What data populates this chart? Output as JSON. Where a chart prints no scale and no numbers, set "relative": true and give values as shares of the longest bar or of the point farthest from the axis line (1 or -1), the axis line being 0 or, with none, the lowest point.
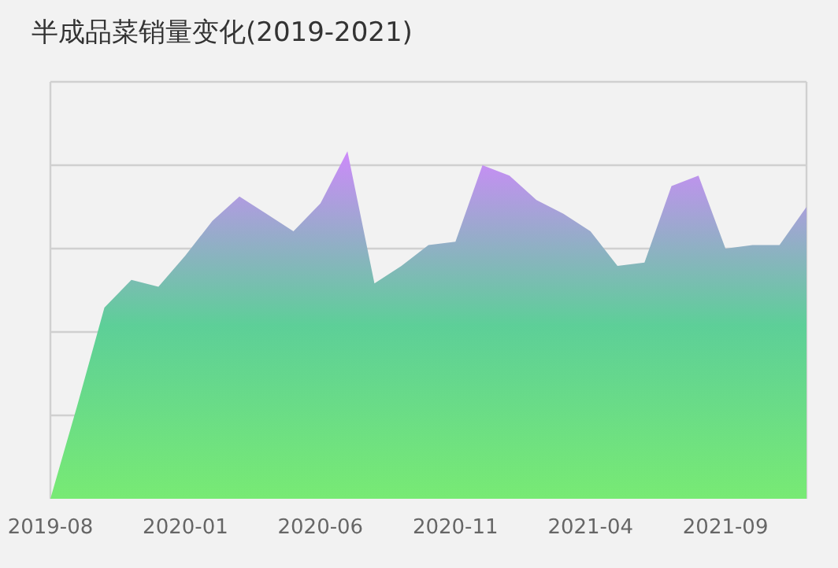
{
  "chart_data": {
    "type": "area",
    "title": "半成品菜销量变化(2019-2021)",
    "relative": true,
    "grid": true,
    "categories": [
      "2019-08",
      null,
      null,
      null,
      null,
      "2020-01",
      null,
      null,
      null,
      null,
      "2020-06",
      null,
      null,
      null,
      null,
      "2020-11",
      null,
      null,
      null,
      null,
      "2021-04",
      null,
      null,
      null,
      null,
      "2021-09",
      null,
      null,
      null
    ],
    "series": [
      {
        "color": "#cd8afa",
        "values": [
          0,
          0.27,
          0.55,
          0.63,
          0.61,
          0.7,
          0.8,
          0.87,
          0.82,
          0.77,
          0.85,
          1,
          0.62,
          0.67,
          0.73,
          0.74,
          0.96,
          0.93,
          0.86,
          0.82,
          0.77,
          0.67,
          0.68,
          0.9,
          0.93,
          0.72,
          0.73,
          0.73,
          0.84
        ]
      }
    ]
  }
}
